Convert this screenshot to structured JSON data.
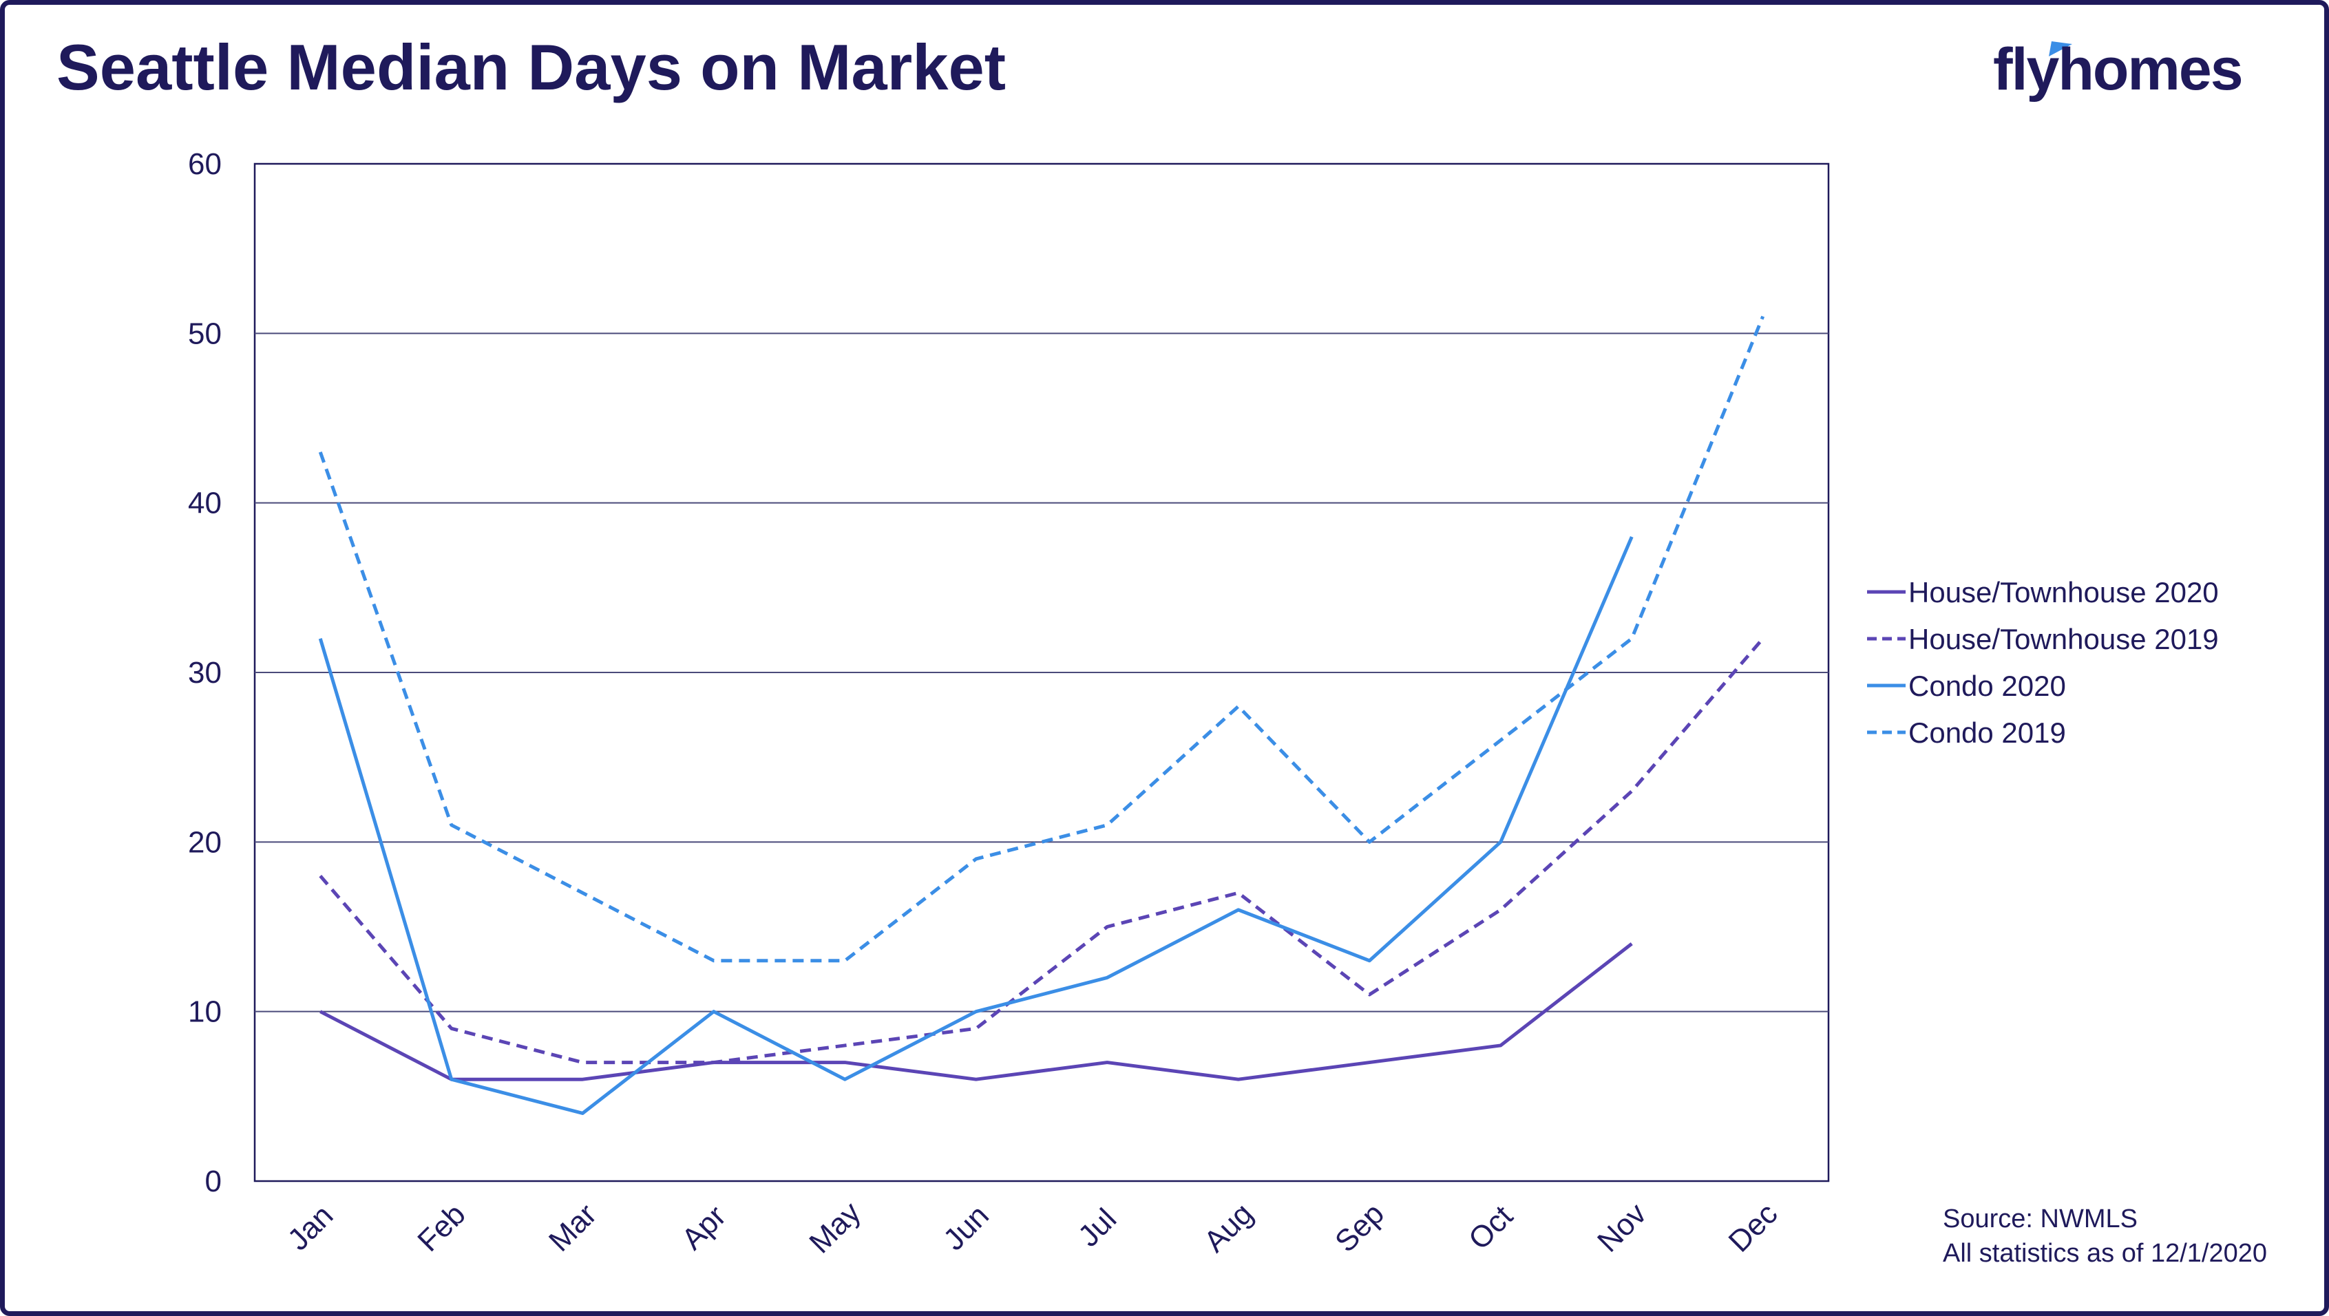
{
  "header": {
    "title": "Seattle Median Days on Market",
    "logo_text": "flyhomes"
  },
  "source": {
    "line1": "Source: NWMLS",
    "line2": "All statistics as of 12/1/2020"
  },
  "colors": {
    "navy": "#1f1a5b",
    "purple": "#5b45b5",
    "blue": "#3b8ee6",
    "grid": "#4a4a7a"
  },
  "chart_data": {
    "type": "line",
    "title": "Seattle Median Days on Market",
    "categories": [
      "Jan",
      "Feb",
      "Mar",
      "Apr",
      "May",
      "Jun",
      "Jul",
      "Aug",
      "Sep",
      "Oct",
      "Nov",
      "Dec"
    ],
    "ylim": [
      0,
      60
    ],
    "yticks": [
      0,
      10,
      20,
      30,
      40,
      50,
      60
    ],
    "grid": "horizontal",
    "legend_position": "right",
    "series": [
      {
        "name": "House/Townhouse 2020",
        "color": "#5b45b5",
        "dashed": false,
        "values": [
          10,
          6,
          6,
          7,
          7,
          6,
          7,
          6,
          7,
          8,
          14,
          null
        ]
      },
      {
        "name": "House/Townhouse 2019",
        "color": "#5b45b5",
        "dashed": true,
        "values": [
          18,
          9,
          7,
          7,
          8,
          9,
          15,
          17,
          11,
          16,
          23,
          32
        ]
      },
      {
        "name": "Condo 2020",
        "color": "#3b8ee6",
        "dashed": false,
        "values": [
          32,
          6,
          4,
          10,
          6,
          10,
          12,
          16,
          13,
          20,
          38,
          null
        ]
      },
      {
        "name": "Condo 2019",
        "color": "#3b8ee6",
        "dashed": true,
        "values": [
          43,
          21,
          17,
          13,
          13,
          19,
          21,
          28,
          20,
          26,
          32,
          51
        ]
      }
    ]
  }
}
